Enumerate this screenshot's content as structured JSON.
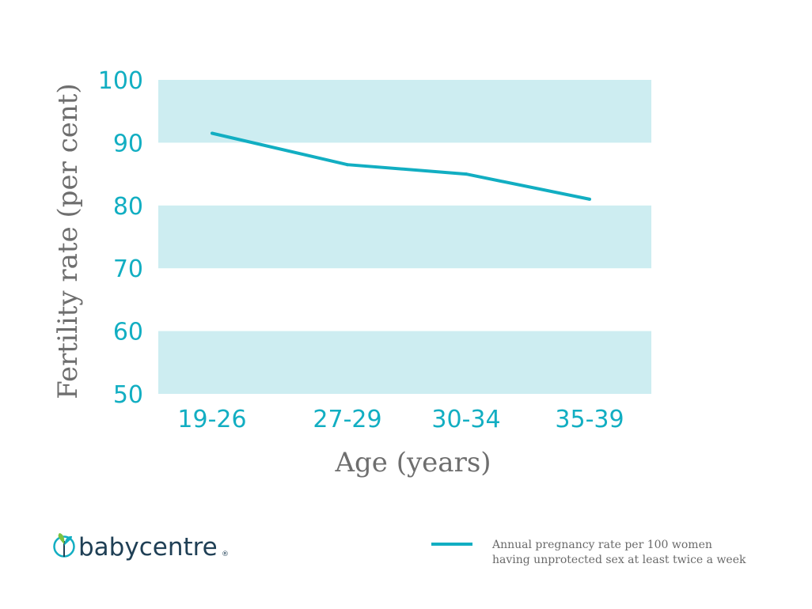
{
  "chart_data": {
    "type": "line",
    "categories": [
      "19-26",
      "27-29",
      "30-34",
      "35-39"
    ],
    "series": [
      {
        "name": "Annual pregnancy rate per 100 women having unprotected sex at least twice a week",
        "values": [
          91.5,
          86.5,
          85,
          81
        ]
      }
    ],
    "xlabel": "Age (years)",
    "ylabel": "Fertility rate (per cent)",
    "ylim": [
      50,
      100
    ],
    "yticks": [
      100,
      90,
      80,
      70,
      60,
      50
    ],
    "grid": "alternating horizontal bands",
    "legend_position": "bottom-right"
  },
  "legend": {
    "line1": "Annual pregnancy rate per 100 women",
    "line2": "having unprotected sex at least twice a week"
  },
  "brand": {
    "name": "babycentre",
    "mark": "®"
  },
  "colors": {
    "series": "#12aec2",
    "band": "#cdedf1",
    "axis_title": "#6e6e6e",
    "brand_text": "#1f3f55",
    "brand_leaf_green": "#7cc242",
    "brand_leaf_teal": "#12aec2"
  }
}
